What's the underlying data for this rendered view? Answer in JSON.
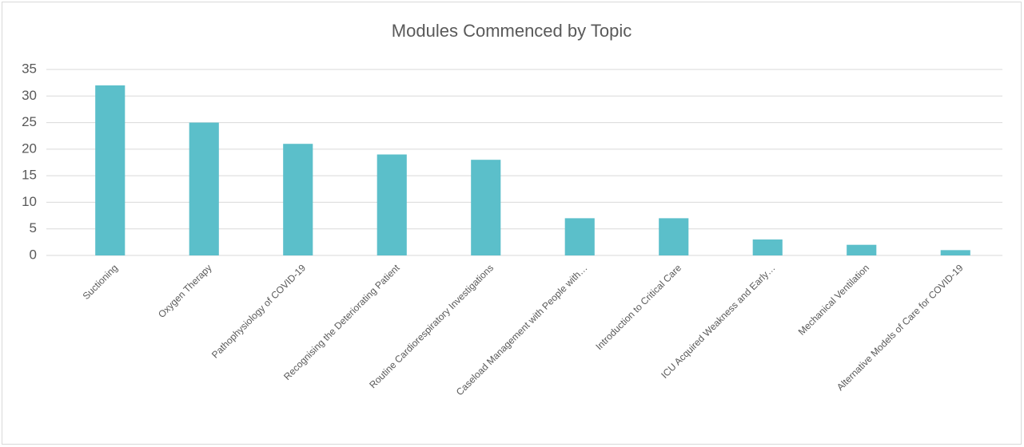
{
  "chart_data": {
    "type": "bar",
    "title": "Modules Commenced by Topic",
    "categories": [
      "Suctioning",
      "Oxygen Therapy",
      "Pathophysiology of COVID-19",
      "Recognising the Deteriorating Patient",
      "Routine Cardiorespiratory Investigations",
      "Caseload Management with People with…",
      "Introduction to Critical Care",
      "ICU Acquired Weakness and Early…",
      "Mechanical Ventilation",
      "Alternative Models of Care for COVID-19"
    ],
    "values": [
      32,
      25,
      21,
      19,
      18,
      7,
      7,
      3,
      2,
      1
    ],
    "color": "#5bbfca",
    "ylim": [
      0,
      35
    ],
    "yticks": [
      0,
      5,
      10,
      15,
      20,
      25,
      30,
      35
    ],
    "grid": true
  }
}
